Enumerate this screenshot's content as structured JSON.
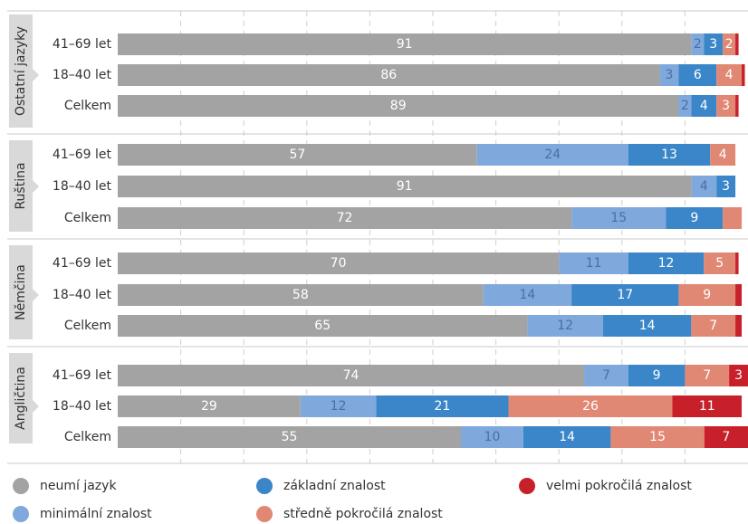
{
  "chart_data": {
    "type": "bar",
    "orientation": "horizontal",
    "stacked": true,
    "xlim": [
      0,
      100
    ],
    "grid": true,
    "legend_position": "bottom",
    "series": [
      {
        "name": "neumí jazyk",
        "color": "#a3a3a3"
      },
      {
        "name": "minimální znalost",
        "color": "#7fa8dc"
      },
      {
        "name": "základní znalost",
        "color": "#3a86c8"
      },
      {
        "name": "středně pokročilá znalost",
        "color": "#e08873"
      },
      {
        "name": "velmi pokročilá znalost",
        "color": "#c8202b"
      }
    ],
    "groups": [
      {
        "name": "Ostatní jazyky",
        "rows": [
          {
            "label": "41–69 let",
            "values": [
              91,
              2,
              3,
              2,
              0.5
            ],
            "labels": [
              "91",
              "2",
              "3",
              "2",
              ""
            ]
          },
          {
            "label": "18–40 let",
            "values": [
              86,
              3,
              6,
              4,
              0.5
            ],
            "labels": [
              "86",
              "3",
              "6",
              "4",
              ""
            ]
          },
          {
            "label": "Celkem",
            "values": [
              89,
              2,
              4,
              3,
              0.5
            ],
            "labels": [
              "89",
              "2",
              "4",
              "3",
              ""
            ]
          }
        ]
      },
      {
        "name": "Ruština",
        "rows": [
          {
            "label": "41–69 let",
            "values": [
              57,
              24,
              13,
              4,
              0
            ],
            "labels": [
              "57",
              "24",
              "13",
              "4",
              ""
            ]
          },
          {
            "label": "18–40 let",
            "values": [
              91,
              4,
              3,
              0,
              0
            ],
            "labels": [
              "91",
              "4",
              "3",
              "",
              ""
            ]
          },
          {
            "label": "Celkem",
            "values": [
              72,
              15,
              9,
              3,
              0
            ],
            "labels": [
              "72",
              "15",
              "9",
              "",
              ""
            ]
          }
        ]
      },
      {
        "name": "Němčina",
        "rows": [
          {
            "label": "41–69 let",
            "values": [
              70,
              11,
              12,
              5,
              0.5
            ],
            "labels": [
              "70",
              "11",
              "12",
              "5",
              ""
            ]
          },
          {
            "label": "18–40 let",
            "values": [
              58,
              14,
              17,
              9,
              1
            ],
            "labels": [
              "58",
              "14",
              "17",
              "9",
              ""
            ]
          },
          {
            "label": "Celkem",
            "values": [
              65,
              12,
              14,
              7,
              1
            ],
            "labels": [
              "65",
              "12",
              "14",
              "7",
              ""
            ]
          }
        ]
      },
      {
        "name": "Angličtina",
        "rows": [
          {
            "label": "41–69 let",
            "values": [
              74,
              7,
              9,
              7,
              3
            ],
            "labels": [
              "74",
              "7",
              "9",
              "7",
              "3"
            ]
          },
          {
            "label": "18–40 let",
            "values": [
              29,
              12,
              21,
              26,
              11
            ],
            "labels": [
              "29",
              "12",
              "21",
              "26",
              "11"
            ]
          },
          {
            "label": "Celkem",
            "values": [
              55,
              10,
              14,
              15,
              7
            ],
            "labels": [
              "55",
              "10",
              "14",
              "15",
              "7"
            ]
          }
        ]
      }
    ]
  }
}
